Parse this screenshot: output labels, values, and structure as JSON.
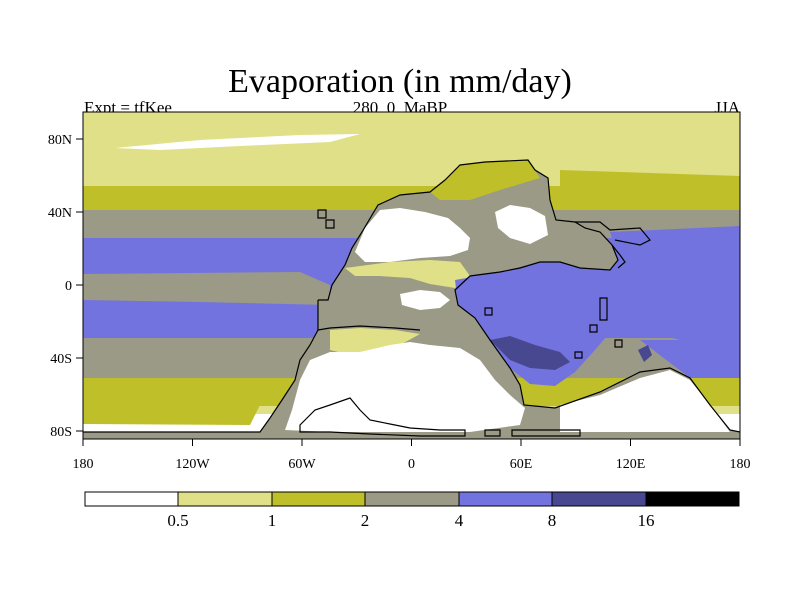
{
  "title": "Evaporation (in mm/day)",
  "subtitle_left": "Expt = tfKee",
  "subtitle_center": "280_0_MaBP",
  "subtitle_right": "JJA",
  "map": {
    "lon_ticks": [
      "180",
      "120W",
      "60W",
      "0",
      "60E",
      "120E",
      "180"
    ],
    "lat_ticks": [
      "80N",
      "40N",
      "0",
      "40S",
      "80S"
    ],
    "lon_range": [
      -180,
      180
    ],
    "lat_range": [
      -90,
      90
    ]
  },
  "colorbar": {
    "labels": [
      "0.5",
      "1",
      "2",
      "4",
      "8",
      "16"
    ],
    "colors": [
      "#ffffff",
      "#e0e088",
      "#bfbf2a",
      "#9a9a86",
      "#7373e0",
      "#484890",
      "#000000"
    ]
  },
  "colors": {
    "white": "#ffffff",
    "pale_yellow": "#e0e088",
    "olive": "#bfbf2a",
    "gray": "#9a9a86",
    "blue": "#7373e0",
    "dark_blue": "#484890"
  }
}
